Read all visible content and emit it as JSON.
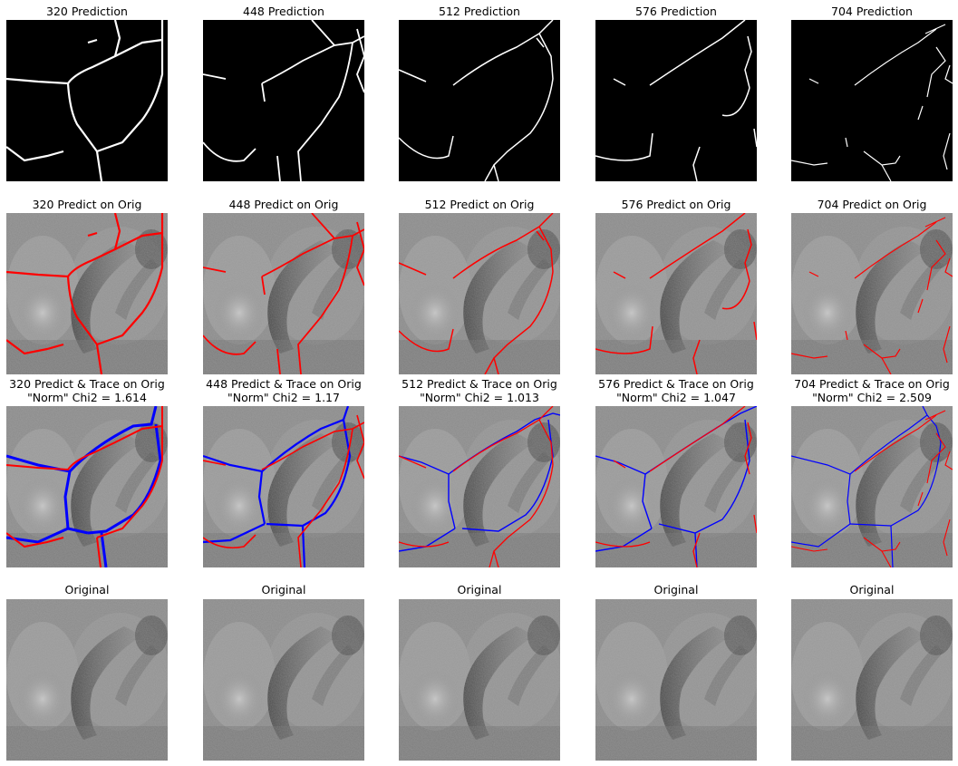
{
  "rows": {
    "prediction": {
      "titles": [
        "320 Prediction",
        "448 Prediction",
        "512 Prediction",
        "576 Prediction",
        "704 Prediction"
      ]
    },
    "predict_on_orig": {
      "titles": [
        "320 Predict on Orig",
        "448 Predict on Orig",
        "512 Predict on Orig",
        "576 Predict on Orig",
        "704 Predict on Orig"
      ]
    },
    "predict_trace": {
      "titles": [
        "320 Predict & Trace on Orig",
        "448 Predict & Trace on Orig",
        "512 Predict & Trace on Orig",
        "576 Predict & Trace on Orig",
        "704 Predict & Trace on Orig"
      ],
      "subtitles": [
        "\"Norm\" Chi2 = 1.614",
        "\"Norm\" Chi2 = 1.17",
        "\"Norm\" Chi2 = 1.013",
        "\"Norm\" Chi2 = 1.047",
        "\"Norm\" Chi2 = 2.509"
      ]
    },
    "original": {
      "titles": [
        "Original",
        "Original",
        "Original",
        "Original",
        "Original"
      ]
    }
  },
  "colors": {
    "prediction_line": "#ffffff",
    "overlay_prediction": "#ff0000",
    "trace": "#0000ff",
    "background": "#000000"
  }
}
